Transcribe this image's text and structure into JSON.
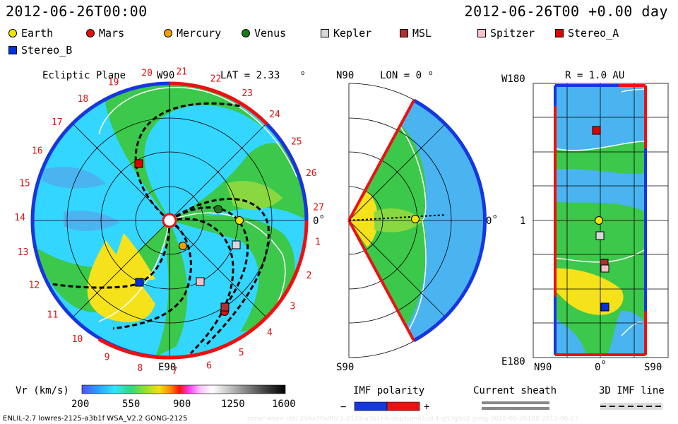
{
  "header": {
    "datetime_left": "2012-06-26T00:00",
    "datetime_right": "2012-06-26T00 +0.00 day"
  },
  "legend": [
    {
      "label": "Earth",
      "color": "#f2e600",
      "shape": "circle"
    },
    {
      "label": "Mars",
      "color": "#e01010",
      "shape": "circle"
    },
    {
      "label": "Mercury",
      "color": "#f0a000",
      "shape": "circle"
    },
    {
      "label": "Venus",
      "color": "#1a7a1a",
      "shape": "circle"
    },
    {
      "label": "Kepler",
      "color": "#d8d8d8",
      "shape": "square"
    },
    {
      "label": "MSL",
      "color": "#b03030",
      "shape": "square"
    },
    {
      "label": "Spitzer",
      "color": "#f8c0c8",
      "shape": "square"
    },
    {
      "label": "Stereo_A",
      "color": "#e00000",
      "shape": "square"
    },
    {
      "label": "Stereo_B",
      "color": "#0030e0",
      "shape": "square"
    }
  ],
  "ecliptic": {
    "title": "Ecliptic Plane",
    "top_label": "W90",
    "bottom_label": "E90",
    "lat_label": "LAT = 2.33",
    "zero_label": "0",
    "ticks": [
      "1",
      "2",
      "3",
      "4",
      "5",
      "6",
      "7",
      "8",
      "9",
      "10",
      "11",
      "12",
      "13",
      "14",
      "15",
      "16",
      "17",
      "18",
      "19",
      "20",
      "21",
      "22",
      "23",
      "24",
      "25",
      "26",
      "27"
    ]
  },
  "meridional": {
    "title": "LON = 0",
    "top_label": "N90",
    "bottom_label": "S90",
    "zero_label": "0"
  },
  "unwrapped": {
    "title": "R = 1.0 AU",
    "top_label": "W180",
    "bottom_label": "E180",
    "mid_label": "1",
    "x_labels": [
      "N90",
      "0",
      "S90"
    ]
  },
  "colorbar": {
    "title": "Vr (km/s)",
    "ticks": [
      "200",
      "550",
      "900",
      "1250",
      "1600"
    ]
  },
  "imf": {
    "title": "IMF polarity",
    "minus": "−",
    "plus": "+",
    "sheath": "Current sheath",
    "line": "3D IMF line"
  },
  "footer": {
    "text": "ENLIL-2.7 lowres-2125-a3b1f WSA_V2.2 GONG-2125",
    "watermark": "cone/ wsa+ cld/ 256x30x90/ 1-2125-a3b1f-b-nbp1umn1cd-1-g53g5d2 gong-2012-06-26100    2012-06-27"
  },
  "colors": {
    "cyan": "#33d6ff",
    "sky": "#4ab4f0",
    "green": "#3cc84a",
    "lightgreen": "#8ad840",
    "yellow": "#f6e21a",
    "red": "#ee1010",
    "blue": "#1636e0"
  }
}
